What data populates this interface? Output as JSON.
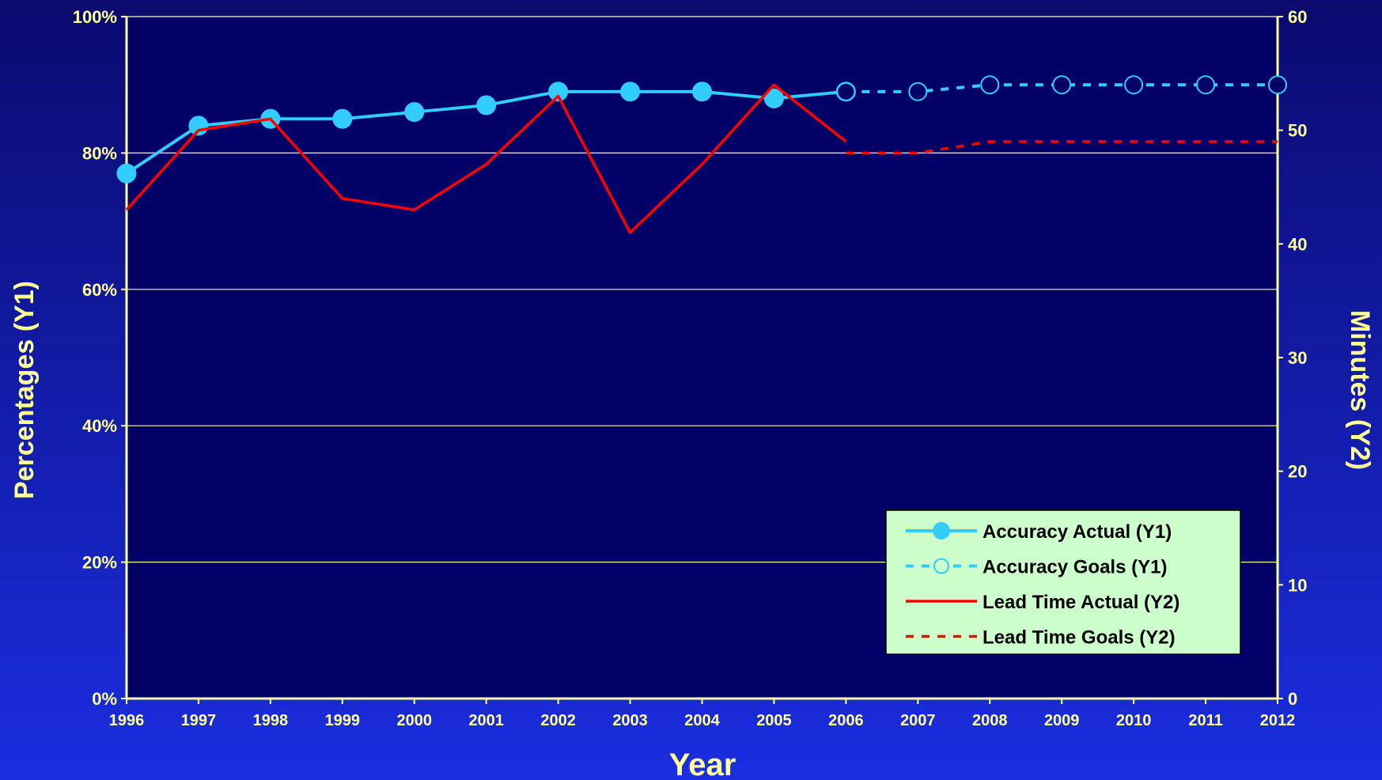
{
  "chart_data": {
    "type": "line",
    "xlabel": "Year",
    "ylabel_left": "Percentages (Y1)",
    "ylabel_right": "Minutes (Y2)",
    "x": [
      1996,
      1997,
      1998,
      1999,
      2000,
      2001,
      2002,
      2003,
      2004,
      2005,
      2006,
      2007,
      2008,
      2009,
      2010,
      2011,
      2012
    ],
    "x_tick_labels": [
      "1996",
      "1997",
      "1998",
      "1999",
      "2000",
      "2001",
      "2002",
      "2003",
      "2004",
      "2005",
      "2006",
      "2007",
      "2008",
      "2009",
      "2010",
      "2011",
      "2012"
    ],
    "y_left_ticks": [
      "0%",
      "20%",
      "40%",
      "60%",
      "80%",
      "100%"
    ],
    "y_left_lim": [
      0,
      100
    ],
    "y_right_ticks": [
      "0",
      "10",
      "20",
      "30",
      "40",
      "50",
      "60"
    ],
    "y_right_lim": [
      0,
      60
    ],
    "grid": "horizontal",
    "legend_placement": "bottom-right",
    "series": [
      {
        "name": "Accuracy Actual (Y1)",
        "axis": "left",
        "color": "#33ccff",
        "style": "solid",
        "marker": "filled-circle",
        "x": [
          1996,
          1997,
          1998,
          1999,
          2000,
          2001,
          2002,
          2003,
          2004,
          2005,
          2006
        ],
        "values": [
          77,
          84,
          85,
          85,
          86,
          87,
          89,
          89,
          89,
          88,
          89
        ]
      },
      {
        "name": "Accuracy Goals (Y1)",
        "axis": "left",
        "color": "#33ccff",
        "style": "dashed",
        "marker": "open-circle",
        "x": [
          2006,
          2007,
          2008,
          2009,
          2010,
          2011,
          2012
        ],
        "values": [
          89,
          89,
          90,
          90,
          90,
          90,
          90
        ]
      },
      {
        "name": "Lead Time Actual (Y2)",
        "axis": "right",
        "color": "#ff0000",
        "style": "solid",
        "marker": "none",
        "x": [
          1996,
          1997,
          1998,
          1999,
          2000,
          2001,
          2002,
          2003,
          2004,
          2005,
          2006
        ],
        "values": [
          43,
          50,
          51,
          44,
          43,
          47,
          53,
          41,
          47,
          54,
          49
        ]
      },
      {
        "name": "Lead Time Goals (Y2)",
        "axis": "right",
        "color": "#ff0000",
        "style": "dashed",
        "marker": "none",
        "x": [
          2006,
          2007,
          2008,
          2009,
          2010,
          2011,
          2012
        ],
        "values": [
          48,
          48,
          49,
          49,
          49,
          49,
          49
        ]
      }
    ]
  },
  "colors": {
    "plot_background": "#000066",
    "axis": "#ffff99",
    "gridline": "#ffff99",
    "legend_background": "#ccffcc"
  }
}
